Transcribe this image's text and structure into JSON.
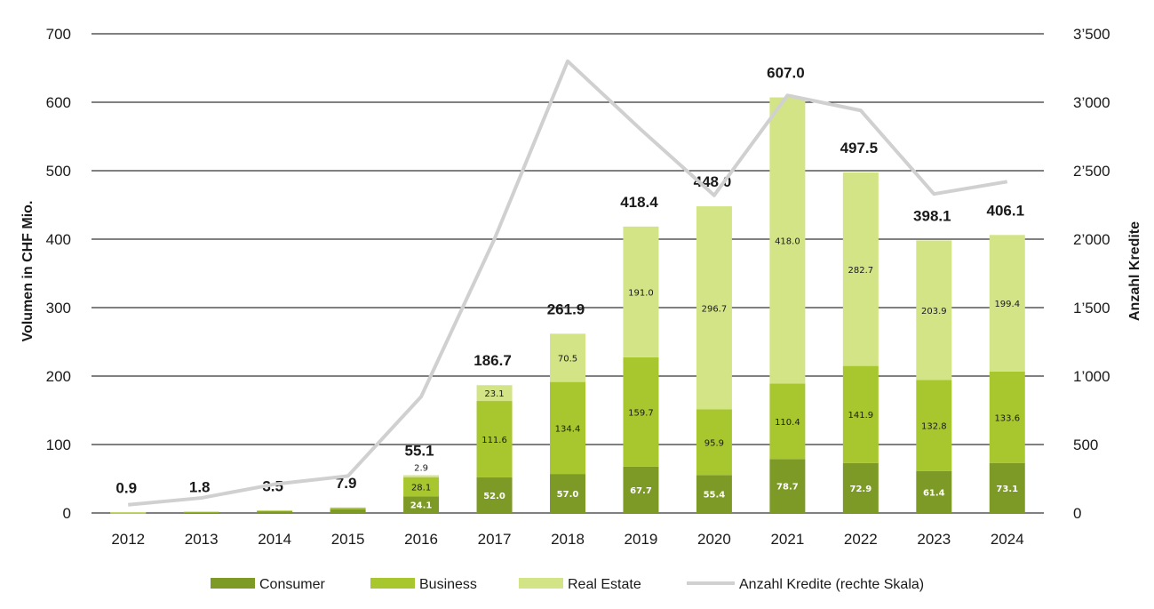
{
  "chart_data": {
    "type": "bar",
    "stacked": true,
    "categories": [
      "2012",
      "2013",
      "2014",
      "2015",
      "2016",
      "2017",
      "2018",
      "2019",
      "2020",
      "2021",
      "2022",
      "2023",
      "2024"
    ],
    "series": [
      {
        "name": "Consumer",
        "color": "#7d9a26",
        "values": [
          0.6,
          1.2,
          2.5,
          5.5,
          24.1,
          52.0,
          57.0,
          67.7,
          55.4,
          78.7,
          72.9,
          61.4,
          73.1
        ],
        "labels": [
          "",
          "",
          "",
          "",
          "24.1",
          "52.0",
          "57.0",
          "67.7",
          "55.4",
          "78.7",
          "72.9",
          "61.4",
          "73.1"
        ]
      },
      {
        "name": "Business",
        "color": "#a8c72f",
        "values": [
          0.3,
          0.6,
          1.0,
          2.4,
          28.1,
          111.6,
          134.4,
          159.7,
          95.9,
          110.4,
          141.9,
          132.8,
          133.6
        ],
        "labels": [
          "",
          "",
          "",
          "",
          "28.1",
          "111.6",
          "134.4",
          "159.7",
          "95.9",
          "110.4",
          "141.9",
          "132.8",
          "133.6"
        ]
      },
      {
        "name": "Real Estate",
        "color": "#d3e487",
        "values": [
          0,
          0,
          0,
          0,
          2.9,
          23.1,
          70.5,
          191.0,
          296.7,
          418.0,
          282.7,
          203.9,
          199.4
        ],
        "labels": [
          "",
          "",
          "",
          "",
          "2.9",
          "23.1",
          "70.5",
          "191.0",
          "296.7",
          "418.0",
          "282.7",
          "203.9",
          "199.4"
        ]
      }
    ],
    "totals": [
      "0.9",
      "1.8",
      "3.5",
      "7.9",
      "55.1",
      "186.7",
      "261.9",
      "418.4",
      "448.0",
      "607.0",
      "497.5",
      "398.1",
      "406.1"
    ],
    "line_series": {
      "name": "Anzahl Kredite (rechte Skala)",
      "color": "#d0d0d0",
      "axis": "right",
      "values": [
        60,
        110,
        210,
        270,
        850,
        2000,
        3300,
        2800,
        2320,
        3050,
        2940,
        2330,
        2420
      ]
    },
    "ylabel": "Volumen in CHF Mio.",
    "y2label": "Anzahl Kredite",
    "ylim": [
      0,
      700
    ],
    "y2lim": [
      0,
      3500
    ],
    "yticks": [
      "0",
      "100",
      "200",
      "300",
      "400",
      "500",
      "600",
      "700"
    ],
    "y2ticks": [
      "0",
      "500",
      "1’000",
      "1’500",
      "2’000",
      "2’500",
      "3’000",
      "3’500"
    ],
    "grid": true,
    "legend_position": "bottom"
  }
}
